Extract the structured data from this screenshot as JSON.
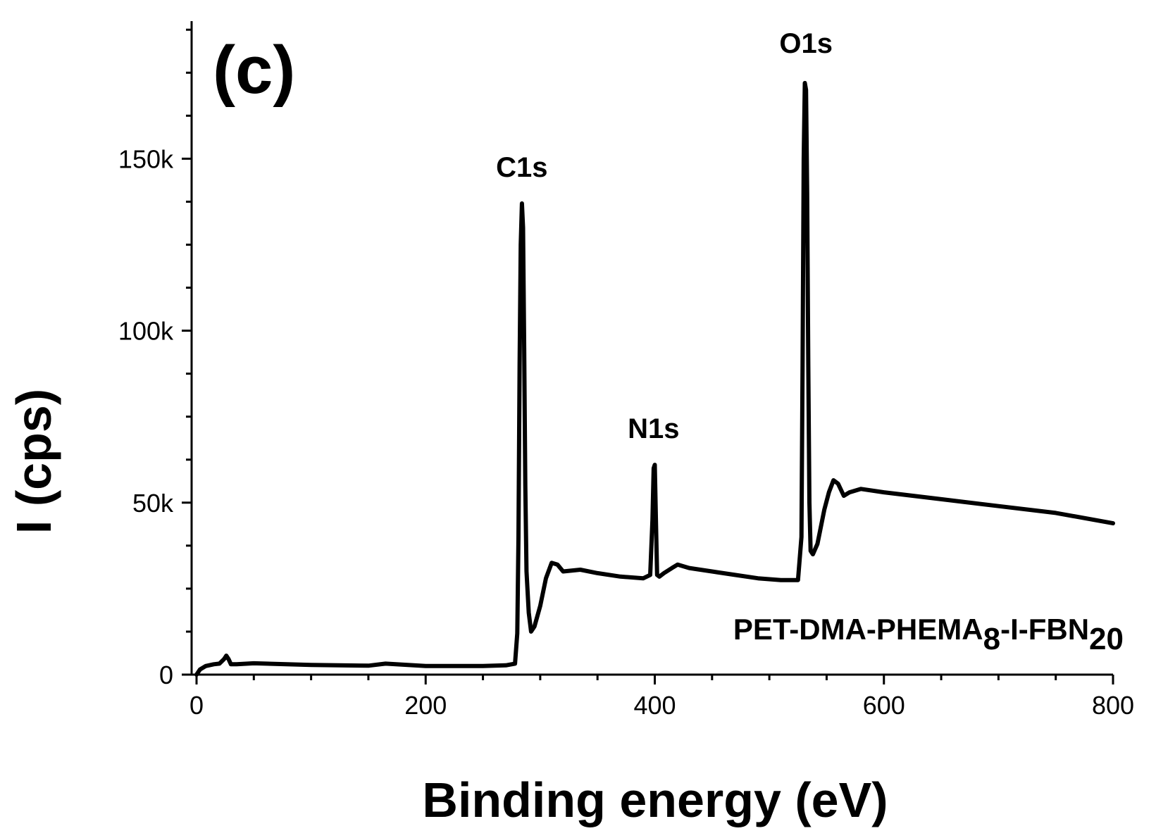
{
  "chart_data": {
    "type": "line",
    "panel_label": "(c)",
    "xlabel": "Binding energy (eV)",
    "ylabel": "I (cps)",
    "xlim": [
      0,
      800
    ],
    "ylim": [
      0,
      190000
    ],
    "x_ticks": [
      {
        "value": 0,
        "label": "0"
      },
      {
        "value": 200,
        "label": "200"
      },
      {
        "value": 400,
        "label": "400"
      },
      {
        "value": 600,
        "label": "600"
      },
      {
        "value": 800,
        "label": "800"
      }
    ],
    "x_minor_step": 50,
    "y_ticks": [
      {
        "value": 0,
        "label": "0"
      },
      {
        "value": 50000,
        "label": "50k"
      },
      {
        "value": 100000,
        "label": "100k"
      },
      {
        "value": 150000,
        "label": "150k"
      }
    ],
    "y_minor_step": 12500,
    "peak_annotations": [
      {
        "text": "C1s",
        "x": 284,
        "y": 137000
      },
      {
        "text": "N1s",
        "x": 399,
        "y": 61000
      },
      {
        "text": "O1s",
        "x": 532,
        "y": 173000
      }
    ],
    "sample_label": {
      "main": "PET-DMA-PHEMA",
      "sub1": "8",
      "mid": "-I-FBN",
      "sub2": "20"
    },
    "series": [
      {
        "name": "PET-DMA-PHEMA8-I-FBN20",
        "x": [
          0,
          3,
          8,
          15,
          20,
          24,
          26,
          28,
          30,
          35,
          50,
          100,
          150,
          165,
          200,
          250,
          270,
          278,
          280,
          281,
          282,
          283,
          284,
          285,
          286,
          287,
          288,
          290,
          292,
          295,
          300,
          305,
          310,
          315,
          320,
          335,
          350,
          370,
          390,
          396,
          398,
          399,
          400,
          401,
          402,
          404,
          408,
          415,
          420,
          430,
          450,
          470,
          490,
          510,
          525,
          528,
          529,
          530,
          531,
          532,
          533,
          534,
          535,
          536,
          538,
          542,
          548,
          552,
          556,
          560,
          565,
          570,
          580,
          600,
          650,
          700,
          750,
          800
        ],
        "y": [
          0,
          1500,
          2500,
          3000,
          3200,
          4500,
          5500,
          4500,
          3000,
          3000,
          3300,
          2800,
          2600,
          3200,
          2500,
          2500,
          2700,
          3200,
          12000,
          40000,
          90000,
          125000,
          137000,
          130000,
          95000,
          55000,
          30000,
          18000,
          12500,
          14000,
          20000,
          28000,
          32500,
          32000,
          30000,
          30500,
          29500,
          28500,
          28000,
          29000,
          45000,
          60000,
          61000,
          45000,
          29000,
          28500,
          29500,
          31000,
          32000,
          31000,
          30000,
          29000,
          28000,
          27500,
          27500,
          40000,
          90000,
          150000,
          172000,
          170000,
          140000,
          90000,
          50000,
          36000,
          35000,
          38000,
          48000,
          53000,
          56500,
          55500,
          52000,
          53000,
          54000,
          53000,
          51000,
          49000,
          47000,
          44000
        ]
      }
    ]
  }
}
